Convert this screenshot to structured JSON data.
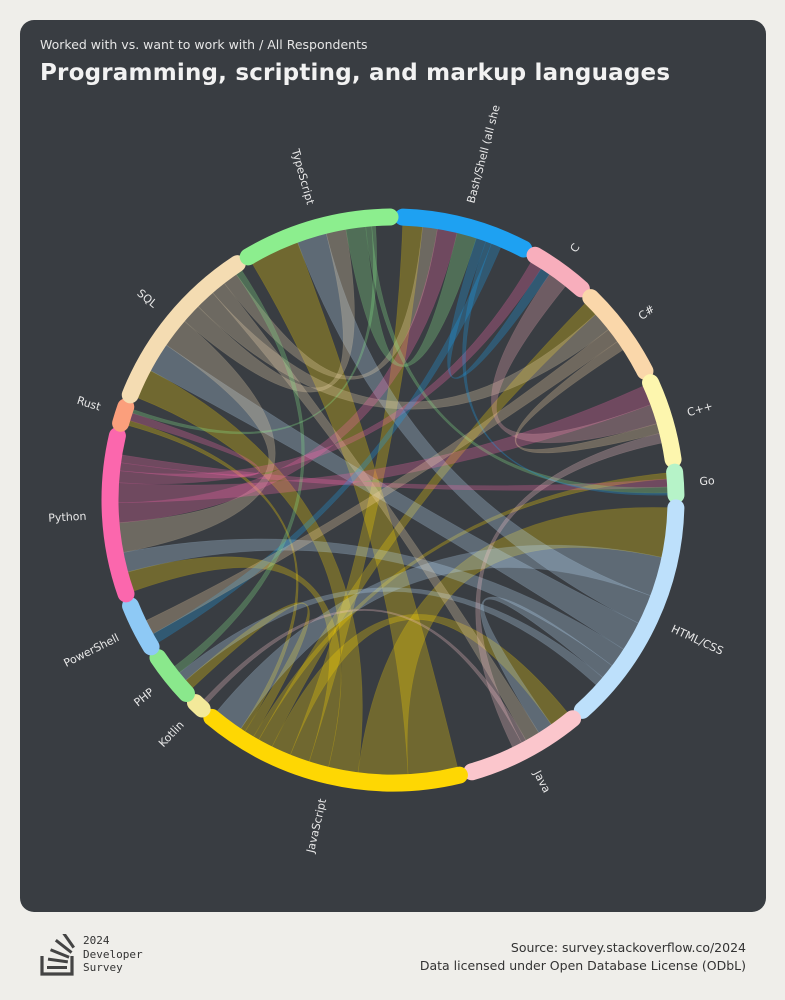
{
  "header": {
    "subtitle": "Worked with vs. want to work with / All Respondents",
    "title": "Programming, scripting, and markup languages"
  },
  "footer": {
    "logo_line1": "2024",
    "logo_line2": "Developer",
    "logo_line3": "Survey",
    "source": "Source: survey.stackoverflow.co/2024",
    "license": "Data licensed under Open Database License (ODbL)"
  },
  "chart_data": {
    "type": "chord",
    "title": "Programming, scripting, and markup languages",
    "subtitle": "Worked with vs. want to work with / All Respondents",
    "groups": [
      {
        "name": "Bash/Shell (all shells)",
        "label": "Bash/Shell (all she",
        "color": "#1ea1f2"
      },
      {
        "name": "C",
        "label": "C",
        "color": "#f8aebc"
      },
      {
        "name": "C#",
        "label": "C#",
        "color": "#fad7aa"
      },
      {
        "name": "C++",
        "label": "C++",
        "color": "#fdf6ae"
      },
      {
        "name": "Go",
        "label": "Go",
        "color": "#b6f3c8"
      },
      {
        "name": "HTML/CSS",
        "label": "HTML/CSS",
        "color": "#bde0fb"
      },
      {
        "name": "Java",
        "label": "Java",
        "color": "#fbc6cc"
      },
      {
        "name": "JavaScript",
        "label": "JavaScript",
        "color": "#fed703"
      },
      {
        "name": "Kotlin",
        "label": "Kotlin",
        "color": "#f3e99a"
      },
      {
        "name": "PHP",
        "label": "PHP",
        "color": "#8ae88c"
      },
      {
        "name": "PowerShell",
        "label": "PowerShell",
        "color": "#8ec9f5"
      },
      {
        "name": "Python",
        "label": "Python",
        "color": "#fb67ad"
      },
      {
        "name": "Rust",
        "label": "Rust",
        "color": "#fb9f7c"
      },
      {
        "name": "SQL",
        "label": "SQL",
        "color": "#f4dcb2"
      },
      {
        "name": "TypeScript",
        "label": "TypeScript",
        "color": "#8cee8e"
      }
    ],
    "group_sizes": [
      11,
      5,
      8,
      7,
      2,
      20,
      10,
      23,
      0.8,
      4,
      4,
      14,
      1.5,
      15,
      13
    ],
    "chords": [
      {
        "from": "JavaScript",
        "to": "TypeScript",
        "value": 5
      },
      {
        "from": "JavaScript",
        "to": "HTML/CSS",
        "value": 5
      },
      {
        "from": "JavaScript",
        "to": "SQL",
        "value": 3
      },
      {
        "from": "JavaScript",
        "to": "Python",
        "value": 2
      },
      {
        "from": "JavaScript",
        "to": "Bash/Shell (all shells)",
        "value": 2
      },
      {
        "from": "JavaScript",
        "to": "Java",
        "value": 2
      },
      {
        "from": "JavaScript",
        "to": "C#",
        "value": 1.5
      },
      {
        "from": "JavaScript",
        "to": "Go",
        "value": 0.6
      },
      {
        "from": "JavaScript",
        "to": "PHP",
        "value": 1
      },
      {
        "from": "JavaScript",
        "to": "Rust",
        "value": 0.5
      },
      {
        "from": "HTML/CSS",
        "to": "JavaScript",
        "value": 4
      },
      {
        "from": "HTML/CSS",
        "to": "TypeScript",
        "value": 3
      },
      {
        "from": "HTML/CSS",
        "to": "SQL",
        "value": 3
      },
      {
        "from": "HTML/CSS",
        "to": "Python",
        "value": 2
      },
      {
        "from": "HTML/CSS",
        "to": "Java",
        "value": 1.5
      },
      {
        "from": "HTML/CSS",
        "to": "PHP",
        "value": 1
      },
      {
        "from": "SQL",
        "to": "Python",
        "value": 3
      },
      {
        "from": "SQL",
        "to": "TypeScript",
        "value": 2
      },
      {
        "from": "SQL",
        "to": "C#",
        "value": 2
      },
      {
        "from": "SQL",
        "to": "Java",
        "value": 1.5
      },
      {
        "from": "SQL",
        "to": "Bash/Shell (all shells)",
        "value": 1.5
      },
      {
        "from": "Python",
        "to": "Bash/Shell (all shells)",
        "value": 2
      },
      {
        "from": "Python",
        "to": "C++",
        "value": 2
      },
      {
        "from": "Python",
        "to": "C",
        "value": 1.2
      },
      {
        "from": "Python",
        "to": "Rust",
        "value": 0.8
      },
      {
        "from": "Python",
        "to": "Go",
        "value": 0.8
      },
      {
        "from": "TypeScript",
        "to": "Bash/Shell (all shells)",
        "value": 2
      },
      {
        "from": "TypeScript",
        "to": "Go",
        "value": 0.6
      },
      {
        "from": "TypeScript",
        "to": "Rust",
        "value": 0.4
      },
      {
        "from": "Bash/Shell (all shells)",
        "to": "C",
        "value": 1
      },
      {
        "from": "Bash/Shell (all shells)",
        "to": "Go",
        "value": 0.6
      },
      {
        "from": "Bash/Shell (all shells)",
        "to": "PowerShell",
        "value": 1
      },
      {
        "from": "C",
        "to": "C++",
        "value": 2
      },
      {
        "from": "C#",
        "to": "PowerShell",
        "value": 1.5
      },
      {
        "from": "C#",
        "to": "C++",
        "value": 1
      },
      {
        "from": "Java",
        "to": "Kotlin",
        "value": 0.5
      },
      {
        "from": "Java",
        "to": "C++",
        "value": 1
      },
      {
        "from": "PHP",
        "to": "SQL",
        "value": 0.8
      }
    ],
    "legend": "none",
    "grid": false
  }
}
